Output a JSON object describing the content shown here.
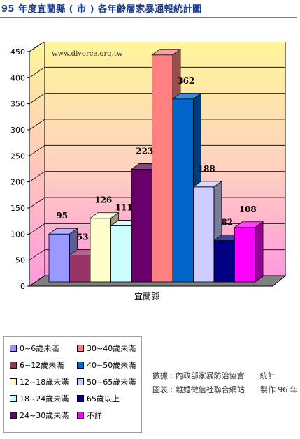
{
  "page": {
    "title": "95 年度宜蘭縣 ( 市 ) 各年齡層家暴通報統計圖",
    "watermark": "www.divorce.org.tw",
    "source_line1": "數據 : 內政部家暴防治協會　　統計",
    "source_line2": "圖表 : 離婚徵信社聯合網站　　製作 96 年"
  },
  "chart_data": {
    "type": "bar",
    "categories": [
      "宜蘭縣"
    ],
    "ylim": [
      0,
      450
    ],
    "yticks": [
      0,
      50,
      100,
      150,
      200,
      250,
      300,
      350,
      400,
      450
    ],
    "grid": true,
    "legend_position": "bottom-left",
    "series": [
      {
        "name": "0~6歲未滿",
        "value": 95,
        "color": "#9999ff"
      },
      {
        "name": "6~12歲未滿",
        "value": 53,
        "color": "#993366"
      },
      {
        "name": "12~18歲未滿",
        "value": 126,
        "color": "#ffffcc"
      },
      {
        "name": "18~24歲未滿",
        "value": 111,
        "color": "#ccffff"
      },
      {
        "name": "24~30歲未滿",
        "value": 223,
        "color": "#660066"
      },
      {
        "name": "30~40歲未滿",
        "value": 449,
        "color": "#ff8080"
      },
      {
        "name": "40~50歲未滿",
        "value": 362,
        "color": "#0066cc"
      },
      {
        "name": "50~65歲未滿",
        "value": 188,
        "color": "#ccccff"
      },
      {
        "name": "65歲以上",
        "value": 82,
        "color": "#000080"
      },
      {
        "name": "不詳",
        "value": 108,
        "color": "#ff00ff"
      }
    ]
  }
}
